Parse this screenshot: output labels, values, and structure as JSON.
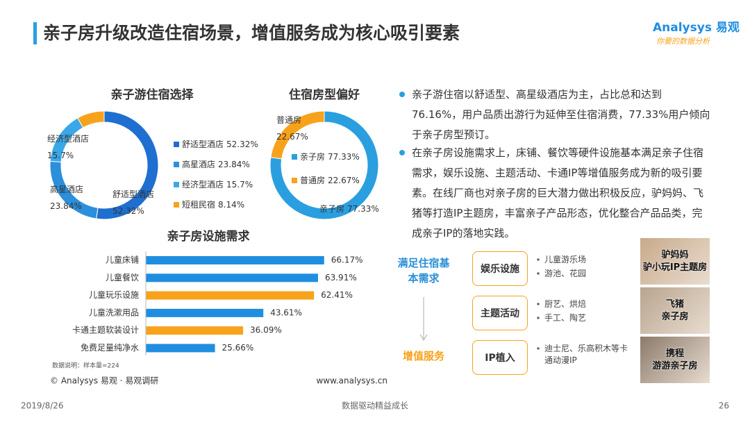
{
  "header": {
    "title": "亲子房升级改造住宿场景，增值服务成为核心吸引要素",
    "logo": "Analysys 易观",
    "logo_slogan": "你要的数据分析"
  },
  "chart_data": [
    {
      "type": "donut",
      "title": "亲子游住宿选择",
      "categories": [
        "舒适型酒店",
        "高星酒店",
        "经济型酒店",
        "短租民宿"
      ],
      "values": [
        52.32,
        23.84,
        15.7,
        8.14
      ],
      "value_labels": [
        "52.32%",
        "23.84%",
        "15.7%",
        "8.14%"
      ],
      "colors": [
        "#1f6fd1",
        "#2b8fdc",
        "#3aa8e8",
        "#f7a21b"
      ]
    },
    {
      "type": "donut",
      "title": "住宿房型偏好",
      "categories": [
        "亲子房",
        "普通房"
      ],
      "values": [
        77.33,
        22.67
      ],
      "value_labels": [
        "77.33%",
        "22.67%"
      ],
      "colors": [
        "#2a9fe0",
        "#f7a21b"
      ]
    },
    {
      "type": "bar",
      "title": "亲子房设施需求",
      "categories": [
        "儿童床铺",
        "儿童餐饮",
        "儿童玩乐设施",
        "儿童洗漱用品",
        "卡通主题软装设计",
        "免费足量纯净水"
      ],
      "values": [
        66.17,
        63.91,
        62.41,
        43.61,
        36.09,
        25.66
      ],
      "value_labels": [
        "66.17%",
        "63.91%",
        "62.41%",
        "43.61%",
        "36.09%",
        "25.66%"
      ],
      "colors": [
        "#1f8ee0",
        "#1f8ee0",
        "#f7a21b",
        "#1f8ee0",
        "#f7a21b",
        "#1f8ee0"
      ]
    }
  ],
  "notes": {
    "sample": "数据说明：样本量=224",
    "source": "© Analysys 易观 · 易观调研",
    "url": "www.analysys.cn"
  },
  "bullets": [
    "亲子游住宿以舒适型、高星级酒店为主，占比总和达到76.16%，用户品质出游行为延伸至住宿消费，77.33%用户倾向于亲子房型预订。",
    "在亲子房设施需求上，床铺、餐饮等硬件设施基本满足亲子住宿需求，娱乐设施、主题活动、卡通IP等增值服务成为新的吸引要素。在线厂商也对亲子房的巨大潜力做出积极反应，驴妈妈、飞猪等打造IP主题房，丰富亲子产品形态，优化整合产品品类，完成亲子IP的落地实践。"
  ],
  "diagram": {
    "left_labels": [
      "满足住宿基本需求",
      "增值服务"
    ],
    "rows": [
      {
        "label": "娱乐设施",
        "items": [
          "儿童游乐场",
          "游池、花园"
        ]
      },
      {
        "label": "主题活动",
        "items": [
          "厨艺、烘焙",
          "手工、陶艺"
        ]
      },
      {
        "label": "IP植入",
        "items": [
          "迪士尼、乐高积木等卡通动漫IP"
        ]
      }
    ],
    "cards": [
      {
        "brand": "驴妈妈",
        "caption": "驴小玩IP主题房"
      },
      {
        "brand": "飞猪",
        "caption": "亲子房"
      },
      {
        "brand": "携程",
        "caption": "游游亲子房"
      }
    ]
  },
  "footer": {
    "date": "2019/8/26",
    "slogan": "数据驱动精益成长",
    "page": "26"
  }
}
